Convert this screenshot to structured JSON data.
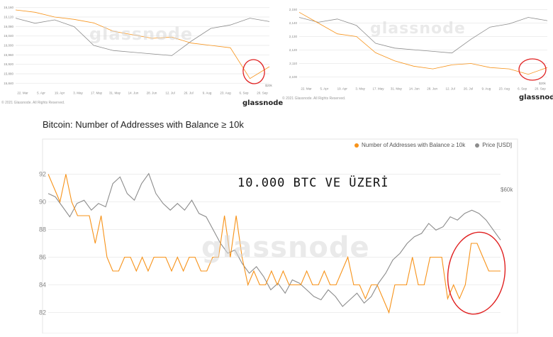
{
  "watermark": "glassnode",
  "brand": "glassnode",
  "copyright": "© 2021 Glassnode. All Rights Reserved.",
  "colors": {
    "addresses": "#f7931a",
    "price": "#8c8c8c",
    "highlight": "#e02020"
  },
  "panels": {
    "top_left": {
      "y_ticks": [
        "16,160",
        "16,120",
        "16,080",
        "16,040",
        "16,000",
        "15,960",
        "15,920",
        "15,880",
        "15,840"
      ],
      "x_ticks": [
        "22. Mar",
        "5. Apr",
        "19. Apr",
        "3. May",
        "17. May",
        "31. May",
        "14. Jun",
        "28. Jun",
        "12. Jul",
        "26. Jul",
        "9. Aug",
        "23. Aug",
        "6. Sep",
        "20. Sep"
      ],
      "price_label": "$20k"
    },
    "top_right": {
      "y_ticks": [
        "2,150",
        "2,140",
        "2,130",
        "2,120",
        "2,110",
        "2,100"
      ],
      "x_ticks": [
        "22. Mar",
        "5. Apr",
        "19. Apr",
        "3. May",
        "17. May",
        "31. May",
        "14. Jun",
        "28. Jun",
        "12. Jul",
        "26. Jul",
        "9. Aug",
        "23. Aug",
        "6. Sep",
        "20. Sep"
      ],
      "price_label": "$20k"
    },
    "main": {
      "title": "Bitcoin: Number of Addresses with Balance ≥ 10k",
      "annotation": "10.000 BTC VE ÜZERİ",
      "price_label": "$60k"
    }
  },
  "chart_data": [
    {
      "type": "line",
      "title": "",
      "ylim": [
        15820,
        16180
      ],
      "y_ticks": [
        15840,
        15880,
        15920,
        15960,
        16000,
        16040,
        16080,
        16120,
        16160
      ],
      "x": [
        "22. Mar",
        "5. Apr",
        "19. Apr",
        "3. May",
        "17. May",
        "31. May",
        "14. Jun",
        "28. Jun",
        "12. Jul",
        "26. Jul",
        "9. Aug",
        "23. Aug",
        "6. Sep",
        "20. Sep"
      ],
      "series": [
        {
          "role": "addresses",
          "values": [
            16150,
            16140,
            16120,
            16110,
            16095,
            16060,
            16045,
            16030,
            16035,
            16010,
            16000,
            15990,
            15860,
            15910
          ]
        },
        {
          "role": "price",
          "values": [
            0.82,
            0.76,
            0.8,
            0.72,
            0.5,
            0.44,
            0.42,
            0.4,
            0.38,
            0.55,
            0.7,
            0.74,
            0.82,
            0.78
          ]
        }
      ]
    },
    {
      "type": "line",
      "title": "",
      "ylim": [
        2095,
        2155
      ],
      "y_ticks": [
        2100,
        2110,
        2120,
        2130,
        2140,
        2150
      ],
      "x": [
        "22. Mar",
        "5. Apr",
        "19. Apr",
        "3. May",
        "17. May",
        "31. May",
        "14. Jun",
        "28. Jun",
        "12. Jul",
        "26. Jul",
        "9. Aug",
        "23. Aug",
        "6. Sep",
        "20. Sep"
      ],
      "series": [
        {
          "role": "addresses",
          "values": [
            2148,
            2140,
            2132,
            2130,
            2118,
            2112,
            2108,
            2106,
            2109,
            2110,
            2107,
            2106,
            2102,
            2107
          ]
        },
        {
          "role": "price",
          "values": [
            0.82,
            0.76,
            0.8,
            0.72,
            0.5,
            0.44,
            0.42,
            0.4,
            0.38,
            0.55,
            0.7,
            0.74,
            0.82,
            0.78
          ]
        }
      ]
    },
    {
      "type": "line",
      "title": "Bitcoin: Number of Addresses with Balance ≥ 10k",
      "ylim": [
        81,
        93
      ],
      "y_ticks": [
        82,
        84,
        86,
        88,
        90,
        92
      ],
      "legend": [
        "Number of Addresses with Balance ≥ 10k",
        "Price [USD]"
      ],
      "legend_position": "top-right",
      "series": [
        {
          "name": "Number of Addresses with Balance ≥ 10k",
          "role": "addresses",
          "values": [
            92,
            91,
            90,
            92,
            90,
            89,
            89,
            89,
            87,
            89,
            86,
            85,
            85,
            86,
            86,
            85,
            86,
            85,
            86,
            86,
            86,
            85,
            86,
            85,
            86,
            86,
            85,
            85,
            86,
            86,
            89,
            86,
            89,
            86,
            84,
            85,
            84,
            84,
            85,
            84,
            85,
            84,
            84,
            84,
            85,
            84,
            84,
            85,
            84,
            84,
            85,
            86,
            84,
            84,
            83,
            84,
            84,
            83,
            82,
            84,
            84,
            84,
            86,
            84,
            84,
            86,
            86,
            86,
            83,
            84,
            83,
            84,
            87,
            87,
            86,
            85,
            85,
            85
          ]
        },
        {
          "name": "Price [USD]",
          "role": "price",
          "values": [
            0.8,
            0.78,
            0.72,
            0.66,
            0.74,
            0.76,
            0.7,
            0.74,
            0.72,
            0.86,
            0.9,
            0.8,
            0.76,
            0.86,
            0.92,
            0.8,
            0.74,
            0.7,
            0.74,
            0.7,
            0.76,
            0.68,
            0.66,
            0.58,
            0.5,
            0.44,
            0.46,
            0.38,
            0.32,
            0.36,
            0.3,
            0.22,
            0.26,
            0.2,
            0.28,
            0.26,
            0.22,
            0.18,
            0.16,
            0.22,
            0.18,
            0.12,
            0.16,
            0.2,
            0.14,
            0.18,
            0.26,
            0.32,
            0.4,
            0.44,
            0.5,
            0.54,
            0.56,
            0.62,
            0.58,
            0.6,
            0.66,
            0.64,
            0.68,
            0.7,
            0.68,
            0.64,
            0.58,
            0.52
          ]
        }
      ]
    }
  ]
}
